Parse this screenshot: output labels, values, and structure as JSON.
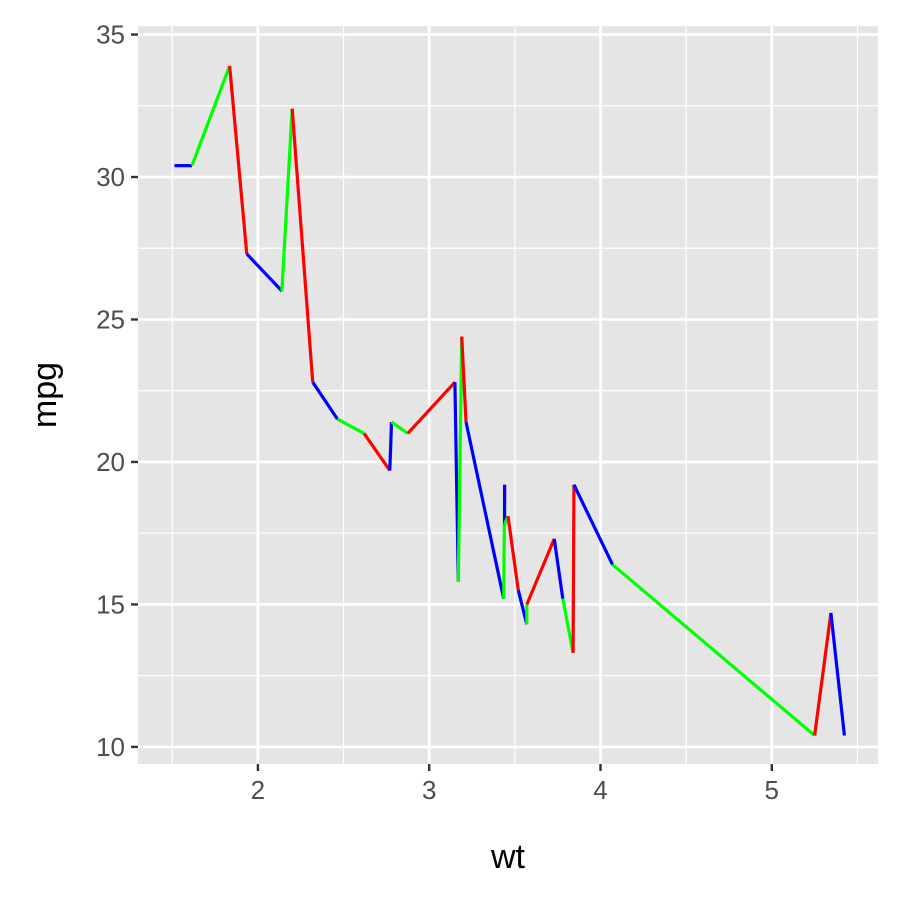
{
  "chart_data": {
    "type": "line",
    "title": "",
    "xlabel": "wt",
    "ylabel": "mpg",
    "xlim": [
      1.3,
      5.62
    ],
    "ylim": [
      9.4,
      35.3
    ],
    "x_ticks": [
      2,
      3,
      4,
      5
    ],
    "x_tick_labels": [
      "2",
      "3",
      "4",
      "5"
    ],
    "y_ticks": [
      10,
      15,
      20,
      25,
      30,
      35
    ],
    "y_tick_labels": [
      "10",
      "15",
      "20",
      "25",
      "30",
      "35"
    ],
    "grid": true,
    "panel_color": "#e5e5e5",
    "grid_color": "#ffffff",
    "segment_colors": [
      "#0000ff",
      "#00ff00",
      "#ff0000"
    ],
    "points": [
      {
        "x": 1.513,
        "y": 30.4
      },
      {
        "x": 1.615,
        "y": 30.4
      },
      {
        "x": 1.835,
        "y": 33.9
      },
      {
        "x": 1.935,
        "y": 27.3
      },
      {
        "x": 2.14,
        "y": 26.0
      },
      {
        "x": 2.2,
        "y": 32.4
      },
      {
        "x": 2.32,
        "y": 22.8
      },
      {
        "x": 2.465,
        "y": 21.5
      },
      {
        "x": 2.62,
        "y": 21.0
      },
      {
        "x": 2.77,
        "y": 19.7
      },
      {
        "x": 2.78,
        "y": 21.4
      },
      {
        "x": 2.875,
        "y": 21.0
      },
      {
        "x": 3.15,
        "y": 22.8
      },
      {
        "x": 3.17,
        "y": 15.8
      },
      {
        "x": 3.19,
        "y": 24.4
      },
      {
        "x": 3.215,
        "y": 21.4
      },
      {
        "x": 3.435,
        "y": 15.2
      },
      {
        "x": 3.44,
        "y": 18.7
      },
      {
        "x": 3.44,
        "y": 19.2
      },
      {
        "x": 3.44,
        "y": 17.8
      },
      {
        "x": 3.46,
        "y": 18.1
      },
      {
        "x": 3.52,
        "y": 15.5
      },
      {
        "x": 3.57,
        "y": 14.3
      },
      {
        "x": 3.57,
        "y": 15.0
      },
      {
        "x": 3.73,
        "y": 17.3
      },
      {
        "x": 3.78,
        "y": 15.2
      },
      {
        "x": 3.84,
        "y": 13.3
      },
      {
        "x": 3.845,
        "y": 19.2
      },
      {
        "x": 4.07,
        "y": 16.4
      },
      {
        "x": 5.25,
        "y": 10.4
      },
      {
        "x": 5.345,
        "y": 14.7
      },
      {
        "x": 5.424,
        "y": 10.4
      }
    ]
  }
}
